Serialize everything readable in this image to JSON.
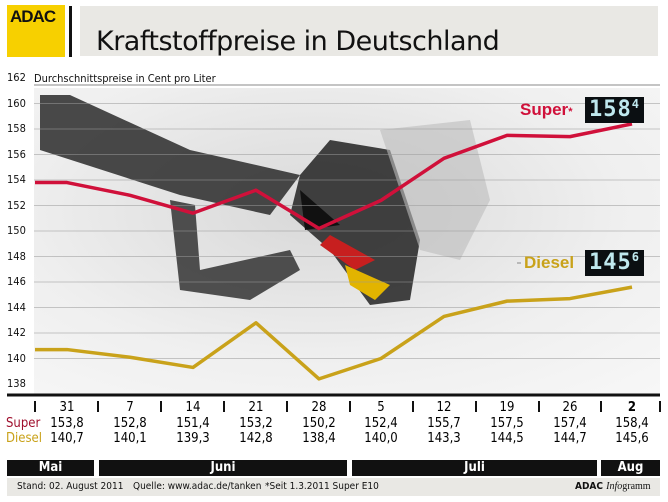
{
  "header": {
    "logo": "ADAC",
    "title": "Kraftstoffpreise in Deutschland"
  },
  "chart_data": {
    "type": "line",
    "title": "Kraftstoffpreise in Deutschland",
    "ylabel": "Durchschnittspreise in Cent pro Liter",
    "ylim": [
      138,
      162
    ],
    "yticks": [
      "138",
      "140",
      "142",
      "144",
      "146",
      "148",
      "150",
      "152",
      "154",
      "156",
      "158",
      "160",
      "162"
    ],
    "grid": true,
    "categories": [
      "31",
      "7",
      "14",
      "21",
      "28",
      "5",
      "12",
      "19",
      "26",
      "2"
    ],
    "months": [
      {
        "label": "Mai"
      },
      {
        "label": "Juni"
      },
      {
        "label": "Juli"
      },
      {
        "label": "Aug"
      }
    ],
    "series": [
      {
        "name": "Super",
        "marker": "*",
        "color": "#d0103a",
        "display": "158",
        "display_decimal": "4",
        "values": [
          153.8,
          152.8,
          151.4,
          153.2,
          150.2,
          152.4,
          155.7,
          157.5,
          157.4,
          158.4
        ]
      },
      {
        "name": "Diesel",
        "color": "#c9a21a",
        "display": "145",
        "display_decimal": "6",
        "values": [
          140.7,
          140.1,
          139.3,
          142.8,
          138.4,
          140.0,
          143.3,
          144.5,
          144.7,
          145.6
        ]
      }
    ],
    "table_values": {
      "super": [
        "153,8",
        "152,8",
        "151,4",
        "153,2",
        "150,2",
        "152,4",
        "155,7",
        "157,5",
        "157,4",
        "158,4"
      ],
      "diesel": [
        "140,7",
        "140,1",
        "139,3",
        "142,8",
        "138,4",
        "140,0",
        "143,3",
        "144,5",
        "144,7",
        "145,6"
      ]
    }
  },
  "footer": {
    "stand": "Stand: 02. August 2011",
    "quelle": "Quelle: www.adac.de/tanken",
    "note": "*Seit 1.3.2011 Super E10",
    "brand": "ADAC",
    "brand_italic": "Info",
    "brand_rest": "gramm"
  }
}
